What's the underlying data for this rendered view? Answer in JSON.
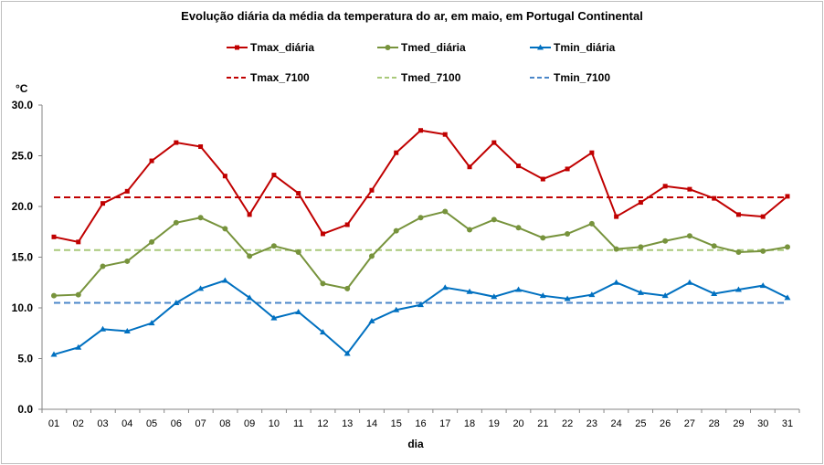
{
  "chart_data": {
    "type": "line",
    "title": "Evolução diária da média da temperatura do ar, em maio, em Portugal Continental",
    "xlabel": "dia",
    "ylabel": "°C",
    "ylim": [
      0,
      30
    ],
    "yticks": [
      "0.0",
      "5.0",
      "10.0",
      "15.0",
      "20.0",
      "25.0",
      "30.0"
    ],
    "grid": false,
    "legend_position": "top",
    "categories": [
      "01",
      "02",
      "03",
      "04",
      "05",
      "06",
      "07",
      "08",
      "09",
      "10",
      "11",
      "12",
      "13",
      "14",
      "15",
      "16",
      "17",
      "18",
      "19",
      "20",
      "21",
      "22",
      "23",
      "24",
      "25",
      "26",
      "27",
      "28",
      "29",
      "30",
      "31"
    ],
    "series": [
      {
        "name": "Tmax_diária",
        "color": "#C00000",
        "style": "solid",
        "marker": "square",
        "values": [
          17.0,
          16.5,
          20.3,
          21.5,
          24.5,
          26.3,
          25.9,
          23.0,
          19.2,
          23.1,
          21.3,
          17.3,
          18.2,
          21.6,
          25.3,
          27.5,
          27.1,
          23.9,
          26.3,
          24.0,
          22.7,
          23.7,
          25.3,
          19.0,
          20.4,
          22.0,
          21.7,
          20.8,
          19.2,
          19.0,
          21.0
        ]
      },
      {
        "name": "Tmed_diária",
        "color": "#77933C",
        "style": "solid",
        "marker": "circle",
        "values": [
          11.2,
          11.3,
          14.1,
          14.6,
          16.5,
          18.4,
          18.9,
          17.8,
          15.1,
          16.1,
          15.5,
          12.4,
          11.9,
          15.1,
          17.6,
          18.9,
          19.5,
          17.7,
          18.7,
          17.9,
          16.9,
          17.3,
          18.3,
          15.8,
          16.0,
          16.6,
          17.1,
          16.1,
          15.5,
          15.6,
          16.0
        ]
      },
      {
        "name": "Tmin_diária",
        "color": "#0070C0",
        "style": "solid",
        "marker": "triangle",
        "values": [
          5.4,
          6.1,
          7.9,
          7.7,
          8.5,
          10.5,
          11.9,
          12.7,
          11.0,
          9.0,
          9.6,
          7.6,
          5.5,
          8.7,
          9.8,
          10.3,
          12.0,
          11.6,
          11.1,
          11.8,
          11.2,
          10.9,
          11.3,
          12.5,
          11.5,
          11.2,
          12.5,
          11.4,
          11.8,
          12.2,
          11.0
        ]
      },
      {
        "name": "Tmax_7100",
        "color": "#C00000",
        "style": "dashed",
        "constant": 20.9
      },
      {
        "name": "Tmed_7100",
        "color": "#A9C97A",
        "style": "dashed",
        "constant": 15.7
      },
      {
        "name": "Tmin_7100",
        "color": "#4A86C8",
        "style": "dashed",
        "constant": 10.5
      }
    ]
  }
}
